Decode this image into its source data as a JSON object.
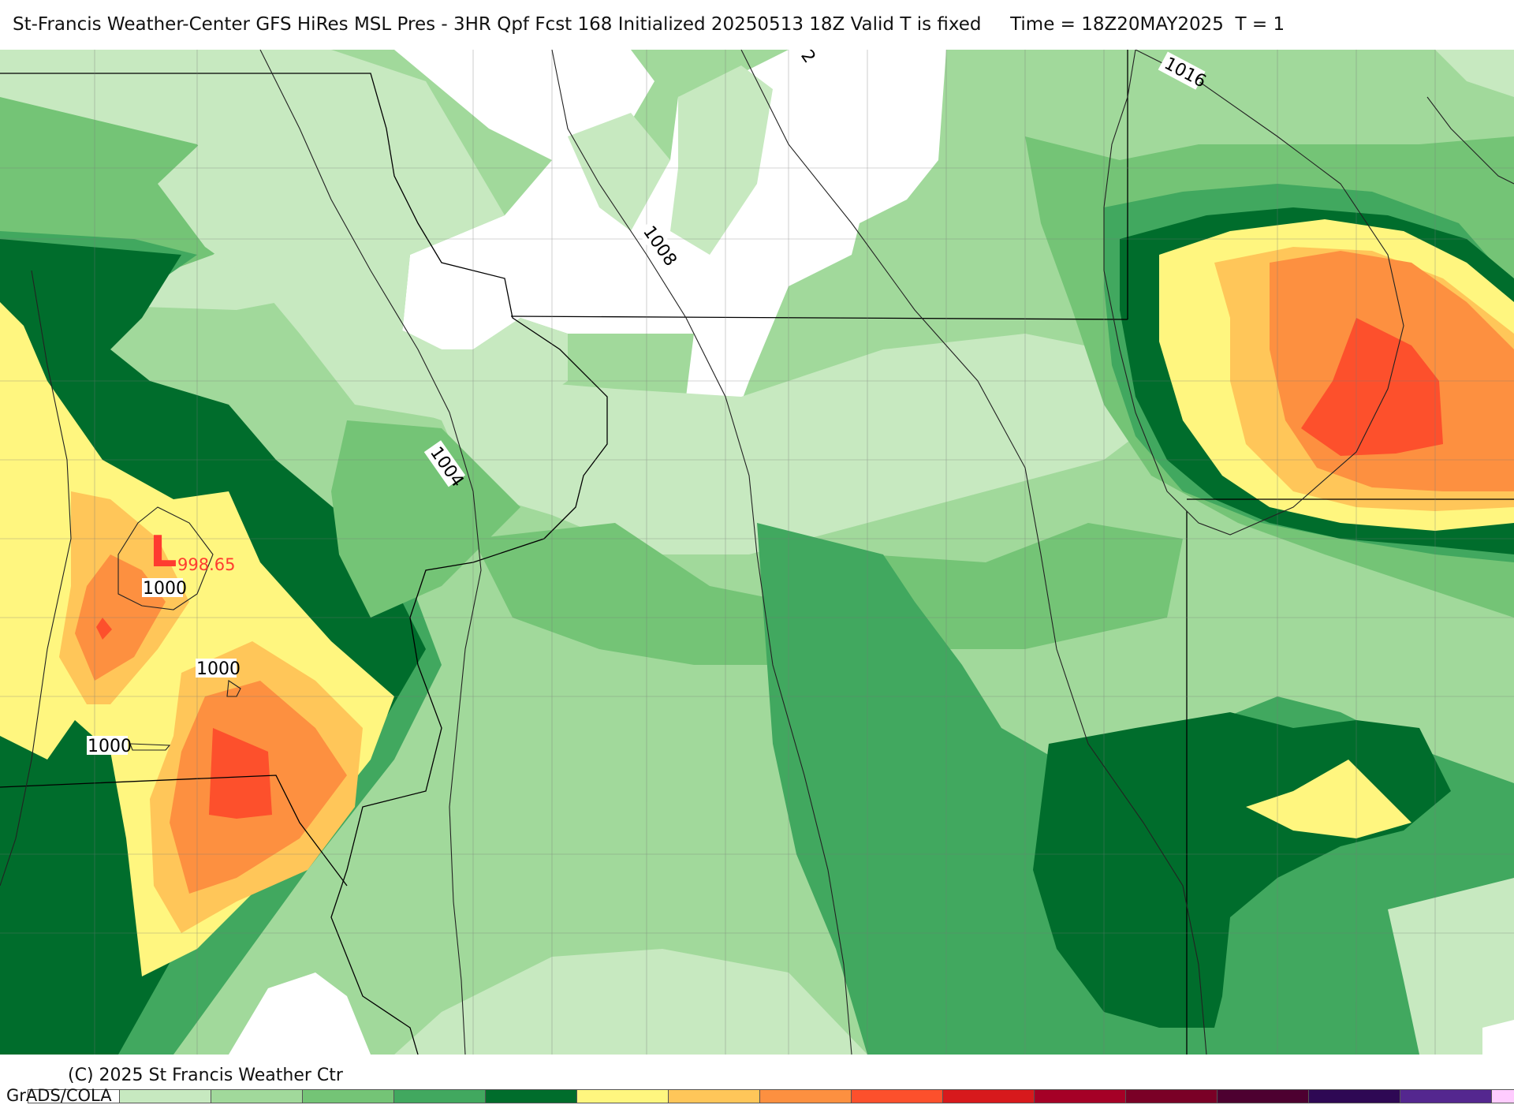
{
  "header": {
    "title": "St-Francis Weather-Center GFS HiRes MSL Pres - 3HR Qpf Fcst 168 Initialized 20250513 18Z Valid T is fixed     Time = 18Z20MAY2025  T = 1"
  },
  "map": {
    "isobar_labels": [
      "1000",
      "1000",
      "1000",
      "1004",
      "1008",
      "1016",
      "2"
    ],
    "low_center": {
      "letter": "L",
      "value": "998.65"
    },
    "qpf_colors": [
      "#ffffff",
      "#c7e9c0",
      "#a1d99b",
      "#74c476",
      "#41a85f",
      "#006d2c",
      "#fff67f",
      "#ffc659",
      "#fd9040",
      "#fd502c",
      "#d7191c",
      "#a50026",
      "#7a0026",
      "#4d0030",
      "#2e0854",
      "#54278f",
      "#ffccff"
    ]
  },
  "footer": {
    "copyright": "(C) 2025 St Francis Weather Ctr",
    "grads_label": "GrADS/COLA"
  }
}
